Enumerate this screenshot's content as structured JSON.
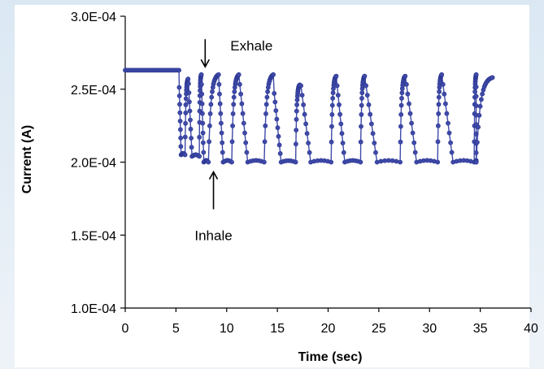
{
  "chart_data": {
    "type": "scatter",
    "title": "",
    "xlabel": "Time (sec)",
    "ylabel": "Current (A)",
    "xlim": [
      0,
      40
    ],
    "ylim": [
      0.0001,
      0.0003
    ],
    "grid": false,
    "x_ticks": [
      0,
      5,
      10,
      15,
      20,
      25,
      30,
      35,
      40
    ],
    "x_tick_labels": [
      "0",
      "5",
      "10",
      "15",
      "20",
      "25",
      "30",
      "35",
      "40"
    ],
    "y_ticks": [
      0.0001,
      0.00015,
      0.0002,
      0.00025,
      0.0003
    ],
    "y_tick_labels": [
      "1.0E-04",
      "1.5E-04",
      "2.0E-04",
      "2.5E-04",
      "3.0E-04"
    ],
    "series_color": "#3f4aa8",
    "annotations": [
      {
        "text": "Exhale",
        "x": 7.8,
        "y": 0.000262,
        "arrow": "down"
      },
      {
        "text": "Inhale",
        "x": 8.3,
        "y": 0.0002,
        "arrow": "up"
      }
    ],
    "baseline": {
      "x_start": 0,
      "x_end": 5.3,
      "y": 0.000263
    },
    "cycles": [
      {
        "x_start": 5.3,
        "x_min": 5.9,
        "x_end": 6.2,
        "y_min": 0.000205,
        "y_max": 0.000257
      },
      {
        "x_start": 6.2,
        "x_min": 7.3,
        "x_end": 7.5,
        "y_min": 0.000204,
        "y_max": 0.00026
      },
      {
        "x_start": 7.5,
        "x_min": 8.2,
        "x_end": 9.2,
        "y_min": 0.0002,
        "y_max": 0.00026
      },
      {
        "x_start": 9.2,
        "x_min": 10.5,
        "x_end": 11.2,
        "y_min": 0.0002,
        "y_max": 0.00026
      },
      {
        "x_start": 11.2,
        "x_min": 13.7,
        "x_end": 14.6,
        "y_min": 0.0002,
        "y_max": 0.00026
      },
      {
        "x_start": 14.6,
        "x_min": 16.8,
        "x_end": 17.2,
        "y_min": 0.0002,
        "y_max": 0.000253
      },
      {
        "x_start": 17.2,
        "x_min": 20.3,
        "x_end": 20.8,
        "y_min": 0.0002,
        "y_max": 0.000259
      },
      {
        "x_start": 20.8,
        "x_min": 23.2,
        "x_end": 23.6,
        "y_min": 0.0002,
        "y_max": 0.000259
      },
      {
        "x_start": 23.6,
        "x_min": 27.1,
        "x_end": 27.6,
        "y_min": 0.0002,
        "y_max": 0.000259
      },
      {
        "x_start": 27.6,
        "x_min": 30.8,
        "x_end": 31.2,
        "y_min": 0.0002,
        "y_max": 0.00026
      },
      {
        "x_start": 31.2,
        "x_min": 34.4,
        "x_end": 34.6,
        "y_min": 0.0002,
        "y_max": 0.00026
      },
      {
        "x_start": 34.6,
        "x_min": 34.6,
        "x_end": 36.2,
        "y_min": 0.0002,
        "y_max": 0.000258
      }
    ]
  }
}
